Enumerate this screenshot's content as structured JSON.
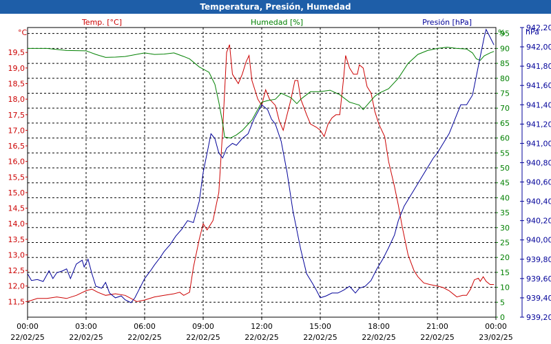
{
  "window": {
    "title": "Temperatura, Presión, Humedad"
  },
  "chart_data": {
    "type": "line",
    "title": "Temperatura, Presión, Humedad",
    "grid": true,
    "colors": {
      "temperature": "#cc0000",
      "humidity": "#008000",
      "pressure": "#000099",
      "title_bar": "#1e5ea8"
    },
    "x_ticks": [
      {
        "time": "00:00",
        "date": "22/02/25",
        "h": 0
      },
      {
        "time": "03:00",
        "date": "22/02/25",
        "h": 3
      },
      {
        "time": "06:00",
        "date": "22/02/25",
        "h": 6
      },
      {
        "time": "09:00",
        "date": "22/02/25",
        "h": 9
      },
      {
        "time": "12:00",
        "date": "22/02/25",
        "h": 12
      },
      {
        "time": "15:00",
        "date": "22/02/25",
        "h": 15
      },
      {
        "time": "18:00",
        "date": "22/02/25",
        "h": 18
      },
      {
        "time": "21:00",
        "date": "22/02/25",
        "h": 21
      },
      {
        "time": "00:00",
        "date": "23/02/25",
        "h": 24
      }
    ],
    "xlim": [
      0,
      24
    ],
    "axes": {
      "temperature": {
        "label": "Temp. [°C]",
        "unit": "°C",
        "ylim": [
          11.0,
          20.3
        ],
        "ticks": [
          11.5,
          12.0,
          12.5,
          13.0,
          13.5,
          14.0,
          14.5,
          15.0,
          15.5,
          16.0,
          16.5,
          17.0,
          17.5,
          18.0,
          18.5,
          19.0,
          19.5
        ],
        "tick_labels": [
          "11,5",
          "12,0",
          "12,5",
          "13,0",
          "13,5",
          "14,0",
          "14,5",
          "15,0",
          "15,5",
          "16,0",
          "16,5",
          "17,0",
          "17,5",
          "18,0",
          "18,5",
          "19,0",
          "19,5"
        ]
      },
      "humidity": {
        "label": "Humedad [%]",
        "unit": "%",
        "ylim": [
          0,
          97
        ],
        "ticks": [
          0,
          5,
          10,
          15,
          20,
          25,
          30,
          35,
          40,
          45,
          50,
          55,
          60,
          65,
          70,
          75,
          80,
          85,
          90,
          95
        ],
        "tick_labels": [
          "0",
          "5",
          "10",
          "15",
          "20",
          "25",
          "30",
          "35",
          "40",
          "45",
          "50",
          "55",
          "60",
          "65",
          "70",
          "75",
          "80",
          "85",
          "90",
          "95"
        ]
      },
      "pressure": {
        "label": "Presión [hPa]",
        "unit": "hPa",
        "ylim": [
          939.2,
          942.2
        ],
        "ticks": [
          939.2,
          939.4,
          939.6,
          939.8,
          940.0,
          940.2,
          940.4,
          940.6,
          940.8,
          941.0,
          941.2,
          941.4,
          941.6,
          941.8,
          942.0,
          942.2
        ],
        "tick_labels": [
          "939,20",
          "939,40",
          "939,60",
          "939,80",
          "940,00",
          "940,20",
          "940,40",
          "940,60",
          "940,80",
          "941,00",
          "941,20",
          "941,40",
          "941,60",
          "941,80",
          "942,00",
          "942,20"
        ]
      }
    },
    "series": [
      {
        "name": "Temp. [°C]",
        "axis": "temperature",
        "color": "#cc0000",
        "points": [
          [
            0.0,
            11.5
          ],
          [
            0.5,
            11.6
          ],
          [
            1.0,
            11.6
          ],
          [
            1.5,
            11.65
          ],
          [
            2.0,
            11.6
          ],
          [
            2.5,
            11.7
          ],
          [
            3.0,
            11.85
          ],
          [
            3.3,
            11.9
          ],
          [
            3.6,
            11.8
          ],
          [
            4.0,
            11.7
          ],
          [
            4.5,
            11.75
          ],
          [
            5.0,
            11.7
          ],
          [
            5.3,
            11.6
          ],
          [
            5.6,
            11.5
          ],
          [
            6.0,
            11.55
          ],
          [
            6.5,
            11.65
          ],
          [
            7.0,
            11.7
          ],
          [
            7.5,
            11.75
          ],
          [
            7.8,
            11.8
          ],
          [
            8.0,
            11.7
          ],
          [
            8.3,
            11.8
          ],
          [
            8.5,
            12.6
          ],
          [
            8.8,
            13.5
          ],
          [
            9.0,
            14.0
          ],
          [
            9.2,
            13.8
          ],
          [
            9.5,
            14.1
          ],
          [
            9.8,
            15.0
          ],
          [
            10.0,
            17.0
          ],
          [
            10.2,
            19.5
          ],
          [
            10.35,
            19.75
          ],
          [
            10.5,
            18.8
          ],
          [
            10.8,
            18.5
          ],
          [
            11.0,
            18.8
          ],
          [
            11.2,
            19.2
          ],
          [
            11.35,
            19.4
          ],
          [
            11.5,
            18.6
          ],
          [
            11.8,
            18.0
          ],
          [
            12.0,
            17.8
          ],
          [
            12.2,
            18.3
          ],
          [
            12.4,
            18.0
          ],
          [
            12.7,
            17.8
          ],
          [
            12.9,
            17.3
          ],
          [
            13.1,
            17.0
          ],
          [
            13.3,
            17.5
          ],
          [
            13.5,
            18.0
          ],
          [
            13.7,
            18.6
          ],
          [
            13.85,
            18.6
          ],
          [
            14.0,
            18.0
          ],
          [
            14.3,
            17.5
          ],
          [
            14.5,
            17.2
          ],
          [
            14.8,
            17.1
          ],
          [
            15.0,
            17.0
          ],
          [
            15.2,
            16.8
          ],
          [
            15.4,
            17.2
          ],
          [
            15.6,
            17.4
          ],
          [
            15.8,
            17.5
          ],
          [
            16.0,
            17.5
          ],
          [
            16.2,
            18.7
          ],
          [
            16.3,
            19.4
          ],
          [
            16.5,
            19.0
          ],
          [
            16.7,
            18.8
          ],
          [
            16.9,
            18.8
          ],
          [
            17.0,
            19.1
          ],
          [
            17.2,
            19.0
          ],
          [
            17.4,
            18.4
          ],
          [
            17.6,
            18.2
          ],
          [
            17.8,
            17.6
          ],
          [
            18.0,
            17.2
          ],
          [
            18.3,
            16.8
          ],
          [
            18.5,
            16.0
          ],
          [
            18.8,
            15.2
          ],
          [
            19.0,
            14.6
          ],
          [
            19.2,
            13.9
          ],
          [
            19.5,
            13.0
          ],
          [
            19.8,
            12.5
          ],
          [
            20.0,
            12.3
          ],
          [
            20.3,
            12.1
          ],
          [
            20.6,
            12.05
          ],
          [
            21.0,
            12.0
          ],
          [
            21.3,
            11.95
          ],
          [
            21.6,
            11.85
          ],
          [
            21.9,
            11.7
          ],
          [
            22.0,
            11.65
          ],
          [
            22.3,
            11.7
          ],
          [
            22.5,
            11.7
          ],
          [
            22.7,
            11.9
          ],
          [
            22.9,
            12.2
          ],
          [
            23.1,
            12.25
          ],
          [
            23.2,
            12.15
          ],
          [
            23.35,
            12.3
          ],
          [
            23.5,
            12.15
          ],
          [
            23.7,
            12.05
          ],
          [
            23.9,
            12.05
          ]
        ]
      },
      {
        "name": "Humedad [%]",
        "axis": "humidity",
        "color": "#008000",
        "points": [
          [
            0.0,
            90.0
          ],
          [
            1.0,
            90.0
          ],
          [
            2.0,
            89.3
          ],
          [
            3.0,
            89.2
          ],
          [
            3.5,
            88.0
          ],
          [
            4.0,
            87.0
          ],
          [
            4.5,
            87.1
          ],
          [
            5.0,
            87.3
          ],
          [
            6.0,
            88.5
          ],
          [
            6.5,
            88.0
          ],
          [
            7.0,
            88.1
          ],
          [
            7.5,
            88.5
          ],
          [
            8.0,
            87.3
          ],
          [
            8.3,
            86.5
          ],
          [
            8.8,
            83.8
          ],
          [
            9.3,
            82.0
          ],
          [
            9.6,
            78.0
          ],
          [
            9.8,
            72.0
          ],
          [
            10.0,
            65.0
          ],
          [
            10.1,
            60.3
          ],
          [
            10.4,
            60.0
          ],
          [
            10.7,
            61.0
          ],
          [
            11.0,
            62.5
          ],
          [
            11.5,
            66.0
          ],
          [
            12.0,
            72.0
          ],
          [
            12.3,
            72.5
          ],
          [
            12.7,
            73.0
          ],
          [
            13.0,
            75.0
          ],
          [
            13.5,
            73.5
          ],
          [
            13.8,
            71.5
          ],
          [
            14.0,
            73.0
          ],
          [
            14.2,
            74.0
          ],
          [
            14.5,
            75.5
          ],
          [
            15.0,
            75.5
          ],
          [
            15.5,
            76.0
          ],
          [
            16.0,
            74.5
          ],
          [
            16.5,
            72.0
          ],
          [
            17.0,
            71.0
          ],
          [
            17.2,
            69.5
          ],
          [
            17.5,
            71.8
          ],
          [
            17.8,
            74.0
          ],
          [
            18.0,
            75.0
          ],
          [
            18.5,
            76.5
          ],
          [
            19.0,
            80.0
          ],
          [
            19.5,
            85.0
          ],
          [
            20.0,
            88.0
          ],
          [
            20.5,
            89.3
          ],
          [
            21.0,
            90.0
          ],
          [
            21.5,
            90.4
          ],
          [
            22.0,
            90.0
          ],
          [
            22.5,
            89.8
          ],
          [
            22.8,
            88.5
          ],
          [
            23.0,
            86.5
          ],
          [
            23.2,
            86.0
          ],
          [
            23.4,
            87.5
          ],
          [
            23.7,
            88.5
          ],
          [
            23.9,
            89.0
          ]
        ]
      },
      {
        "name": "Presión [hPa]",
        "axis": "pressure",
        "color": "#000099",
        "points": [
          [
            0.0,
            939.65
          ],
          [
            0.2,
            939.58
          ],
          [
            0.5,
            939.59
          ],
          [
            0.8,
            939.57
          ],
          [
            1.1,
            939.68
          ],
          [
            1.3,
            939.6
          ],
          [
            1.5,
            939.66
          ],
          [
            1.8,
            939.68
          ],
          [
            2.0,
            939.7
          ],
          [
            2.2,
            939.6
          ],
          [
            2.5,
            939.75
          ],
          [
            2.8,
            939.79
          ],
          [
            2.9,
            939.72
          ],
          [
            3.1,
            939.8
          ],
          [
            3.3,
            939.65
          ],
          [
            3.5,
            939.52
          ],
          [
            3.8,
            939.5
          ],
          [
            4.0,
            939.56
          ],
          [
            4.2,
            939.45
          ],
          [
            4.5,
            939.4
          ],
          [
            4.8,
            939.42
          ],
          [
            5.0,
            939.38
          ],
          [
            5.3,
            939.35
          ],
          [
            5.5,
            939.4
          ],
          [
            5.7,
            939.48
          ],
          [
            6.0,
            939.6
          ],
          [
            6.3,
            939.68
          ],
          [
            6.5,
            939.74
          ],
          [
            6.8,
            939.82
          ],
          [
            7.0,
            939.88
          ],
          [
            7.3,
            939.95
          ],
          [
            7.6,
            940.04
          ],
          [
            7.9,
            940.11
          ],
          [
            8.2,
            940.2
          ],
          [
            8.5,
            940.18
          ],
          [
            8.8,
            940.4
          ],
          [
            9.0,
            940.7
          ],
          [
            9.2,
            940.9
          ],
          [
            9.4,
            941.1
          ],
          [
            9.6,
            941.05
          ],
          [
            9.8,
            940.9
          ],
          [
            10.0,
            940.85
          ],
          [
            10.2,
            940.95
          ],
          [
            10.5,
            941.0
          ],
          [
            10.7,
            940.98
          ],
          [
            11.0,
            941.05
          ],
          [
            11.3,
            941.1
          ],
          [
            11.6,
            941.25
          ],
          [
            12.0,
            941.4
          ],
          [
            12.3,
            941.35
          ],
          [
            12.5,
            941.25
          ],
          [
            12.7,
            941.2
          ],
          [
            13.0,
            941.02
          ],
          [
            13.3,
            940.7
          ],
          [
            13.6,
            940.3
          ],
          [
            14.0,
            939.9
          ],
          [
            14.3,
            939.65
          ],
          [
            14.6,
            939.55
          ],
          [
            14.8,
            939.48
          ],
          [
            15.0,
            939.4
          ],
          [
            15.3,
            939.42
          ],
          [
            15.6,
            939.45
          ],
          [
            15.9,
            939.45
          ],
          [
            16.2,
            939.48
          ],
          [
            16.5,
            939.52
          ],
          [
            16.8,
            939.45
          ],
          [
            17.0,
            939.5
          ],
          [
            17.3,
            939.52
          ],
          [
            17.6,
            939.58
          ],
          [
            17.9,
            939.7
          ],
          [
            18.2,
            939.8
          ],
          [
            18.5,
            939.92
          ],
          [
            18.8,
            940.05
          ],
          [
            19.0,
            940.2
          ],
          [
            19.3,
            940.35
          ],
          [
            19.6,
            940.45
          ],
          [
            19.9,
            940.55
          ],
          [
            20.2,
            940.65
          ],
          [
            20.5,
            940.75
          ],
          [
            20.8,
            940.85
          ],
          [
            21.0,
            940.9
          ],
          [
            21.3,
            941.0
          ],
          [
            21.6,
            941.1
          ],
          [
            21.8,
            941.2
          ],
          [
            22.0,
            941.3
          ],
          [
            22.2,
            941.4
          ],
          [
            22.5,
            941.4
          ],
          [
            22.8,
            941.5
          ],
          [
            23.0,
            941.7
          ],
          [
            23.2,
            941.9
          ],
          [
            23.4,
            942.1
          ],
          [
            23.5,
            942.18
          ],
          [
            23.7,
            942.1
          ],
          [
            23.9,
            942.02
          ]
        ]
      }
    ]
  }
}
